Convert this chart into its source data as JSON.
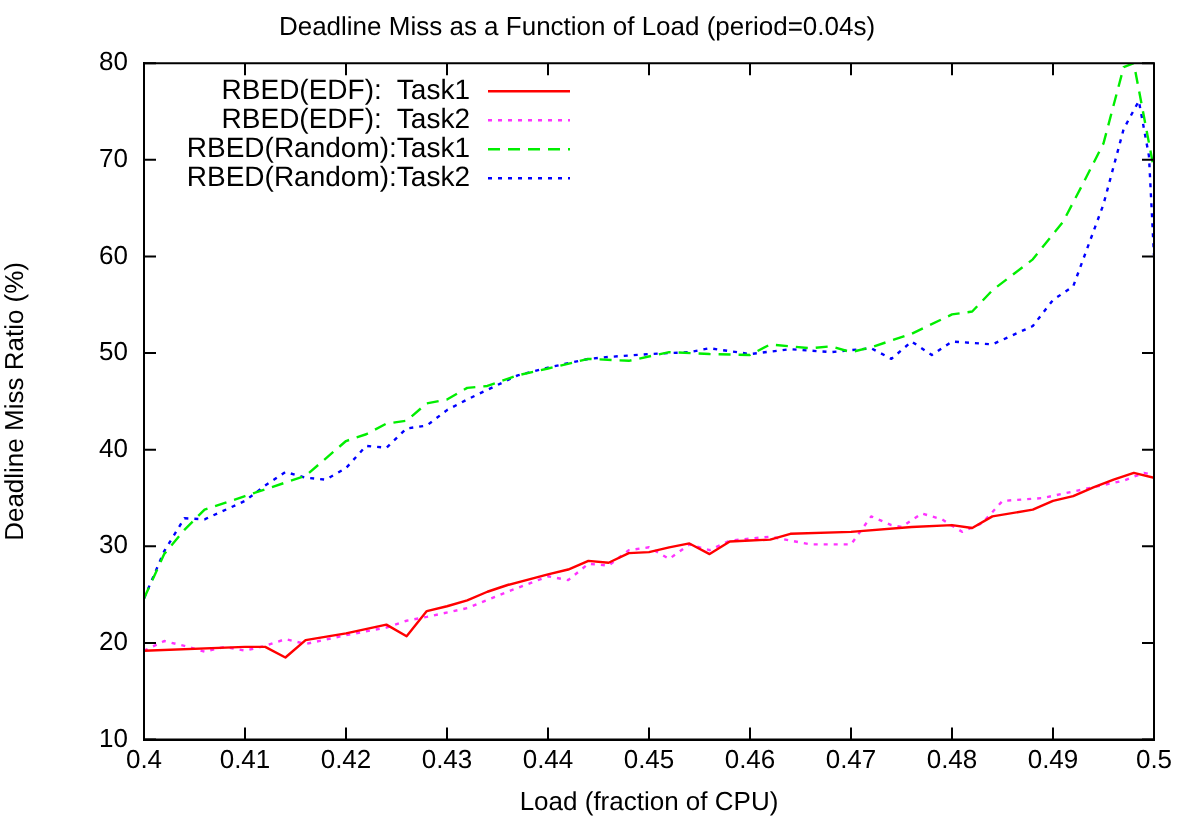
{
  "chart_data": {
    "type": "line",
    "title": "Deadline Miss as a Function of Load (period=0.04s)",
    "xlabel": "Load (fraction of CPU)",
    "ylabel": "Deadline Miss Ratio (%)",
    "xlim": [
      0.4,
      0.5
    ],
    "xticks": [
      0.4,
      0.41,
      0.42,
      0.43,
      0.44,
      0.45,
      0.46,
      0.47,
      0.48,
      0.49,
      0.5
    ],
    "ylim": [
      10,
      80
    ],
    "yticks": [
      10,
      20,
      30,
      40,
      50,
      60,
      70,
      80
    ],
    "grid": false,
    "legend": "top left",
    "marker": "none",
    "series": [
      {
        "name": "RBED(EDF):  Task1",
        "color": "#ff0000",
        "line_style": "solid",
        "x": [
          0.4,
          0.41,
          0.412,
          0.414,
          0.416,
          0.42,
          0.424,
          0.426,
          0.428,
          0.43,
          0.432,
          0.434,
          0.436,
          0.44,
          0.442,
          0.444,
          0.446,
          0.448,
          0.45,
          0.452,
          0.454,
          0.456,
          0.458,
          0.46,
          0.462,
          0.464,
          0.47,
          0.476,
          0.48,
          0.482,
          0.484,
          0.488,
          0.49,
          0.492,
          0.494,
          0.496,
          0.498,
          0.5
        ],
        "values": [
          19.2,
          19.6,
          19.6,
          18.5,
          20.3,
          21,
          21.9,
          20.7,
          23.3,
          23.8,
          24.4,
          25.3,
          26,
          27.1,
          27.6,
          28.5,
          28.3,
          29.3,
          29.4,
          29.9,
          30.3,
          29.2,
          30.5,
          30.6,
          30.7,
          31.3,
          31.5,
          32,
          32.2,
          31.9,
          33.1,
          33.8,
          34.7,
          35.2,
          36.1,
          36.9,
          37.6,
          37.1
        ]
      },
      {
        "name": "RBED(EDF):  Task2",
        "color": "#ff33ff",
        "line_style": "dotted",
        "x": [
          0.4,
          0.402,
          0.404,
          0.406,
          0.408,
          0.41,
          0.412,
          0.414,
          0.416,
          0.42,
          0.424,
          0.426,
          0.428,
          0.432,
          0.436,
          0.44,
          0.442,
          0.444,
          0.446,
          0.448,
          0.45,
          0.452,
          0.454,
          0.456,
          0.458,
          0.462,
          0.464,
          0.466,
          0.47,
          0.472,
          0.474,
          0.475,
          0.477,
          0.479,
          0.481,
          0.483,
          0.485,
          0.489,
          0.493,
          0.497,
          0.499,
          0.5
        ],
        "values": [
          19.2,
          20.2,
          19.7,
          19.1,
          19.6,
          19.2,
          19.7,
          20.4,
          19.9,
          20.8,
          21.6,
          22.3,
          22.7,
          23.6,
          25.3,
          26.9,
          26.5,
          28.2,
          28,
          29.6,
          29.9,
          28.7,
          30.2,
          29.6,
          30.6,
          31,
          30.6,
          30.2,
          30.2,
          33.1,
          32.2,
          32,
          33.4,
          32.8,
          31.5,
          32.4,
          34.7,
          35,
          35.9,
          36.8,
          37.6,
          37.4
        ]
      },
      {
        "name": "RBED(Random):Task1",
        "color": "#00ee00",
        "line_style": "dashed",
        "x": [
          0.4,
          0.402,
          0.404,
          0.406,
          0.41,
          0.412,
          0.416,
          0.42,
          0.422,
          0.424,
          0.426,
          0.428,
          0.43,
          0.432,
          0.434,
          0.437,
          0.44,
          0.444,
          0.448,
          0.452,
          0.456,
          0.46,
          0.462,
          0.466,
          0.468,
          0.47,
          0.472,
          0.476,
          0.48,
          0.482,
          0.484,
          0.488,
          0.491,
          0.493,
          0.495,
          0.497,
          0.498,
          0.5
        ],
        "values": [
          24.6,
          29.2,
          31.7,
          33.8,
          35.2,
          35.9,
          37.3,
          40.9,
          41.6,
          42.7,
          43,
          44.8,
          45.2,
          46.4,
          46.6,
          47.7,
          48.4,
          49.4,
          49.2,
          50.1,
          49.9,
          49.8,
          50.9,
          50.5,
          50.7,
          50.1,
          50.6,
          52,
          54,
          54.3,
          56.5,
          59.7,
          63.6,
          67.6,
          71.7,
          79.6,
          80,
          69
        ]
      },
      {
        "name": "RBED(Random):Task2",
        "color": "#0000ff",
        "line_style": "dotted",
        "x": [
          0.4,
          0.402,
          0.404,
          0.406,
          0.41,
          0.412,
          0.414,
          0.416,
          0.418,
          0.42,
          0.422,
          0.424,
          0.426,
          0.428,
          0.43,
          0.432,
          0.434,
          0.437,
          0.44,
          0.444,
          0.446,
          0.45,
          0.454,
          0.456,
          0.46,
          0.464,
          0.468,
          0.472,
          0.474,
          0.476,
          0.478,
          0.48,
          0.484,
          0.488,
          0.49,
          0.492,
          0.495,
          0.497,
          0.4985,
          0.4995,
          0.5
        ],
        "values": [
          24.6,
          29.5,
          32.9,
          32.8,
          34.7,
          36.3,
          37.7,
          37.1,
          36.9,
          38.1,
          40.4,
          40.2,
          42.2,
          42.5,
          44.1,
          45.2,
          46.2,
          47.7,
          48.5,
          49.4,
          49.6,
          49.9,
          50.1,
          50.5,
          49.9,
          50.4,
          50.1,
          50.5,
          49.4,
          51.2,
          49.8,
          51.2,
          50.9,
          52.8,
          55.5,
          56.9,
          65.4,
          73.2,
          76.1,
          70.4,
          60.1
        ]
      }
    ]
  }
}
